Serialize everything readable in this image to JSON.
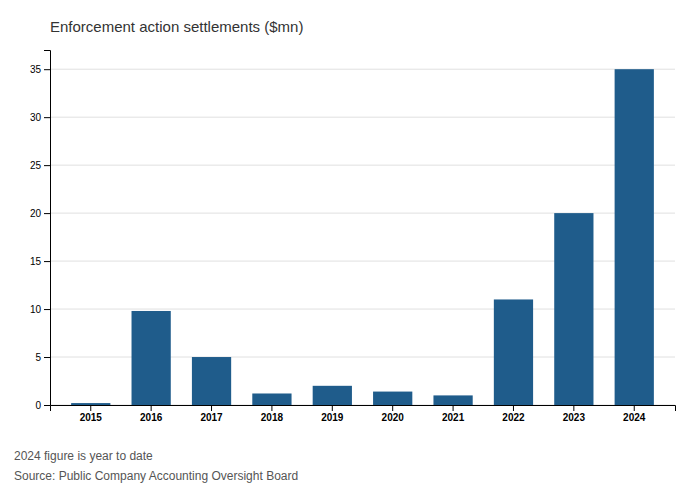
{
  "chart_data": {
    "type": "bar",
    "title": "Enforcement action settlements ($mn)",
    "categories": [
      "2015",
      "2016",
      "2017",
      "2018",
      "2019",
      "2020",
      "2021",
      "2022",
      "2023",
      "2024"
    ],
    "values": [
      0.2,
      9.8,
      5.0,
      1.2,
      2.0,
      1.4,
      1.0,
      11.0,
      20.0,
      35.0
    ],
    "color": "#1f5c8b",
    "ylim": [
      0,
      37
    ],
    "yticks": [
      0,
      5,
      10,
      15,
      20,
      25,
      30,
      35
    ],
    "grid": true,
    "annotations": [
      "2024 figure is year to date",
      "Source: Public Company Accounting Oversight Board"
    ]
  }
}
